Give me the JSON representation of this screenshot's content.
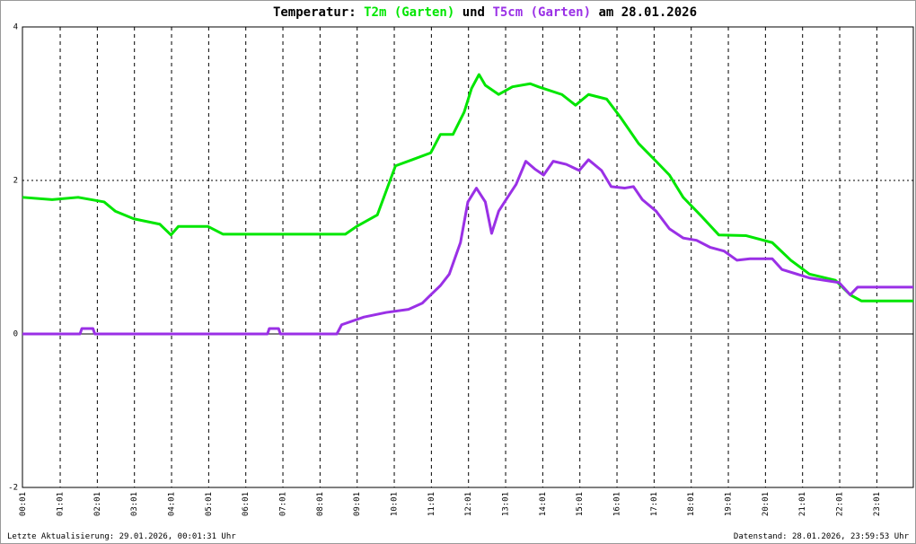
{
  "chart_data": {
    "type": "line",
    "title_prefix": "Temperatur:",
    "title_join": "und",
    "title_suffix": "am 28.01.2026",
    "footer_left": "Letzte Aktualisierung: 29.01.2026, 00:01:31 Uhr",
    "footer_right": "Datenstand: 28.01.2026, 23:59:53 Uhr",
    "xlim": [
      0,
      24
    ],
    "xticks": [
      {
        "value": 0.017,
        "label": "00:01"
      },
      {
        "value": 1.017,
        "label": "01:01"
      },
      {
        "value": 2.017,
        "label": "02:01"
      },
      {
        "value": 3.017,
        "label": "03:01"
      },
      {
        "value": 4.017,
        "label": "04:01"
      },
      {
        "value": 5.017,
        "label": "05:01"
      },
      {
        "value": 6.017,
        "label": "06:01"
      },
      {
        "value": 7.017,
        "label": "07:01"
      },
      {
        "value": 8.017,
        "label": "08:01"
      },
      {
        "value": 9.017,
        "label": "09:01"
      },
      {
        "value": 10.017,
        "label": "10:01"
      },
      {
        "value": 11.017,
        "label": "11:01"
      },
      {
        "value": 12.017,
        "label": "12:01"
      },
      {
        "value": 13.017,
        "label": "13:01"
      },
      {
        "value": 14.017,
        "label": "14:01"
      },
      {
        "value": 15.017,
        "label": "15:01"
      },
      {
        "value": 16.017,
        "label": "16:01"
      },
      {
        "value": 17.017,
        "label": "17:01"
      },
      {
        "value": 18.017,
        "label": "18:01"
      },
      {
        "value": 19.017,
        "label": "19:01"
      },
      {
        "value": 20.017,
        "label": "20:01"
      },
      {
        "value": 21.017,
        "label": "21:01"
      },
      {
        "value": 22.017,
        "label": "22:01"
      },
      {
        "value": 23.017,
        "label": "23:01"
      }
    ],
    "ylim": [
      -2,
      4
    ],
    "yticks": [
      -2,
      0,
      2,
      4
    ],
    "grid": true,
    "series": [
      {
        "name": "T2m (Garten)",
        "color": "#00e600",
        "x": [
          0,
          0.8,
          1.5,
          2.2,
          2.5,
          3.0,
          3.7,
          4.0,
          4.2,
          5.0,
          5.4,
          8.7,
          9.0,
          9.56,
          10.05,
          10.5,
          11.0,
          11.26,
          11.6,
          11.9,
          12.1,
          12.3,
          12.47,
          12.83,
          13.2,
          13.68,
          13.9,
          14.53,
          14.9,
          15.25,
          15.74,
          16.1,
          16.6,
          17.07,
          17.43,
          17.8,
          18.28,
          18.76,
          19.5,
          20.2,
          20.7,
          21.2,
          21.9,
          22.3,
          22.6,
          24.0
        ],
        "values": [
          1.78,
          1.75,
          1.78,
          1.72,
          1.6,
          1.5,
          1.43,
          1.29,
          1.4,
          1.4,
          1.3,
          1.3,
          1.4,
          1.55,
          2.19,
          2.27,
          2.36,
          2.6,
          2.6,
          2.89,
          3.2,
          3.38,
          3.24,
          3.12,
          3.22,
          3.26,
          3.22,
          3.12,
          2.98,
          3.12,
          3.06,
          2.83,
          2.48,
          2.25,
          2.07,
          1.78,
          1.54,
          1.29,
          1.28,
          1.19,
          0.96,
          0.78,
          0.7,
          0.51,
          0.43,
          0.43
        ]
      },
      {
        "name": "T5cm (Garten)",
        "color": "#9a30e6",
        "x": [
          0,
          1.55,
          1.6,
          1.9,
          1.95,
          6.6,
          6.65,
          6.9,
          6.95,
          8.47,
          8.6,
          9.2,
          9.8,
          10.4,
          10.77,
          11.0,
          11.26,
          11.5,
          11.8,
          12.0,
          12.23,
          12.47,
          12.64,
          12.83,
          13.07,
          13.3,
          13.56,
          13.8,
          14.04,
          14.3,
          14.65,
          15.0,
          15.25,
          15.6,
          15.86,
          16.22,
          16.46,
          16.7,
          17.07,
          17.43,
          17.8,
          18.16,
          18.52,
          18.9,
          19.25,
          19.6,
          20.2,
          20.46,
          21.2,
          22.0,
          22.3,
          22.5,
          24.0
        ],
        "values": [
          0,
          0,
          0.07,
          0.07,
          0,
          0,
          0.07,
          0.07,
          0,
          0,
          0.12,
          0.22,
          0.28,
          0.32,
          0.4,
          0.51,
          0.63,
          0.78,
          1.19,
          1.72,
          1.9,
          1.72,
          1.31,
          1.6,
          1.78,
          1.95,
          2.25,
          2.15,
          2.07,
          2.25,
          2.21,
          2.13,
          2.27,
          2.13,
          1.92,
          1.9,
          1.92,
          1.75,
          1.6,
          1.37,
          1.25,
          1.22,
          1.13,
          1.08,
          0.96,
          0.98,
          0.98,
          0.84,
          0.73,
          0.67,
          0.51,
          0.61,
          0.61
        ]
      }
    ]
  }
}
